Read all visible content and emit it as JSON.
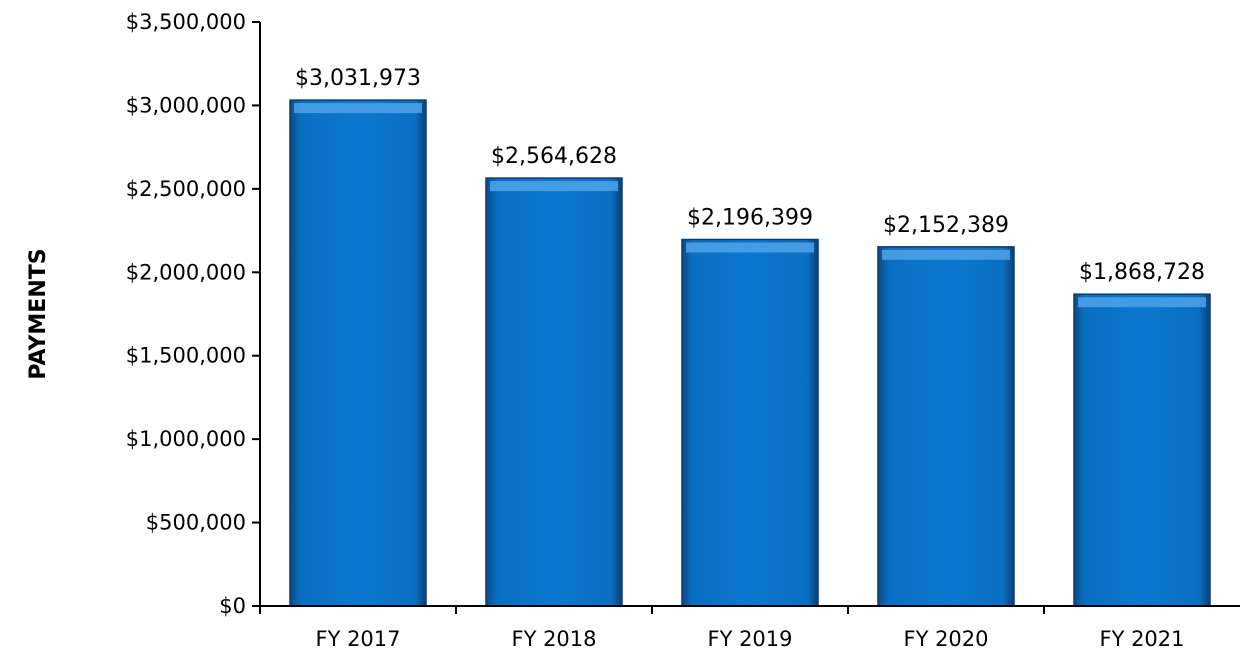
{
  "chart_data": {
    "type": "bar",
    "title": "",
    "xlabel": "",
    "ylabel": "PAYMENTS",
    "categories": [
      "FY 2017",
      "FY 2018",
      "FY 2019",
      "FY 2020",
      "FY 2021"
    ],
    "values": [
      3031973,
      2564628,
      2196399,
      2152389,
      1868728
    ],
    "data_labels": [
      "$3,031,973",
      "$2,564,628",
      "$2,196,399",
      "$2,152,389",
      "$1,868,728"
    ],
    "ylim": [
      0,
      3500000
    ],
    "y_ticks": [
      0,
      500000,
      1000000,
      1500000,
      2000000,
      2500000,
      3000000,
      3500000
    ],
    "y_tick_labels": [
      "$0",
      "$500,000",
      "$1,000,000",
      "$1,500,000",
      "$2,000,000",
      "$2,500,000",
      "$3,000,000",
      "$3,500,000"
    ],
    "grid": false,
    "legend": "none",
    "bar_color": "#0A6FC2",
    "bar_edge_color": "#0B3C6E",
    "bar_highlight_color": "#4FA3E8"
  }
}
